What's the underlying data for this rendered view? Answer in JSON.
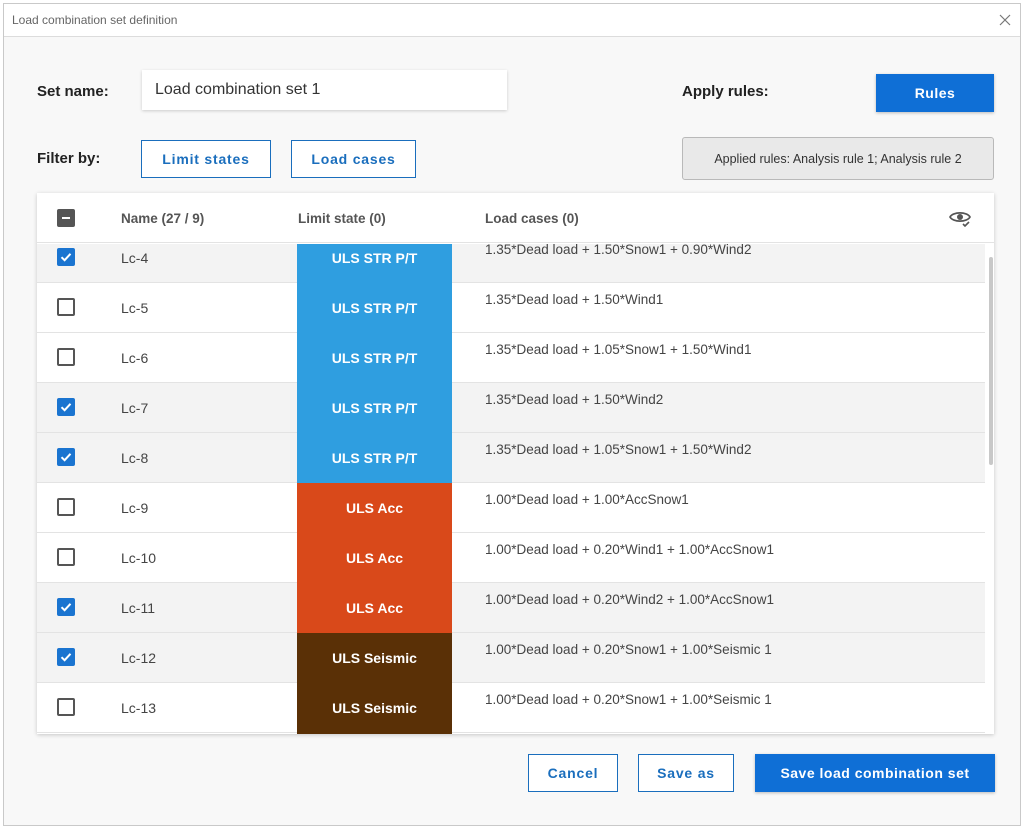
{
  "window": {
    "title": "Load combination set definition"
  },
  "set_name": {
    "label": "Set name:",
    "value": "Load combination set 1"
  },
  "apply_rules": {
    "label": "Apply rules:",
    "button": "Rules"
  },
  "filter": {
    "label": "Filter by:",
    "limit_states_button": "Limit states",
    "load_cases_button": "Load cases"
  },
  "applied_rules_text": "Applied rules: Analysis rule 1; Analysis rule 2",
  "table": {
    "headers": {
      "name": "Name (27 / 9)",
      "limit_state": "Limit state (0)",
      "load_cases": "Load cases (0)"
    },
    "rows": [
      {
        "name": "Lc-4",
        "checked": true,
        "limit_state": "ULS STR P/T",
        "ls_color": "#2f9ee0",
        "load_cases": "1.35*Dead load + 1.50*Snow1 + 0.90*Wind2"
      },
      {
        "name": "Lc-5",
        "checked": false,
        "limit_state": "ULS STR P/T",
        "ls_color": "#2f9ee0",
        "load_cases": "1.35*Dead load + 1.50*Wind1"
      },
      {
        "name": "Lc-6",
        "checked": false,
        "limit_state": "ULS STR P/T",
        "ls_color": "#2f9ee0",
        "load_cases": "1.35*Dead load + 1.05*Snow1 + 1.50*Wind1"
      },
      {
        "name": "Lc-7",
        "checked": true,
        "limit_state": "ULS STR P/T",
        "ls_color": "#2f9ee0",
        "load_cases": "1.35*Dead load + 1.50*Wind2"
      },
      {
        "name": "Lc-8",
        "checked": true,
        "limit_state": "ULS STR P/T",
        "ls_color": "#2f9ee0",
        "load_cases": "1.35*Dead load + 1.05*Snow1 + 1.50*Wind2"
      },
      {
        "name": "Lc-9",
        "checked": false,
        "limit_state": "ULS Acc",
        "ls_color": "#d9491a",
        "load_cases": "1.00*Dead load + 1.00*AccSnow1"
      },
      {
        "name": "Lc-10",
        "checked": false,
        "limit_state": "ULS Acc",
        "ls_color": "#d9491a",
        "load_cases": "1.00*Dead load + 0.20*Wind1 + 1.00*AccSnow1"
      },
      {
        "name": "Lc-11",
        "checked": true,
        "limit_state": "ULS Acc",
        "ls_color": "#d9491a",
        "load_cases": "1.00*Dead load + 0.20*Wind2 + 1.00*AccSnow1"
      },
      {
        "name": "Lc-12",
        "checked": true,
        "limit_state": "ULS Seismic",
        "ls_color": "#5a3006",
        "load_cases": "1.00*Dead load + 0.20*Snow1 + 1.00*Seismic 1"
      },
      {
        "name": "Lc-13",
        "checked": false,
        "limit_state": "ULS Seismic",
        "ls_color": "#5a3006",
        "load_cases": "1.00*Dead load + 0.20*Snow1 + 1.00*Seismic 1"
      },
      {
        "name": "",
        "checked": false,
        "limit_state": "",
        "ls_color": "#5a3006",
        "load_cases": ""
      }
    ]
  },
  "footer": {
    "cancel": "Cancel",
    "save_as": "Save as",
    "save_set": "Save load combination set"
  },
  "icons": {
    "close": "close-icon",
    "visibility": "eye-icon"
  }
}
